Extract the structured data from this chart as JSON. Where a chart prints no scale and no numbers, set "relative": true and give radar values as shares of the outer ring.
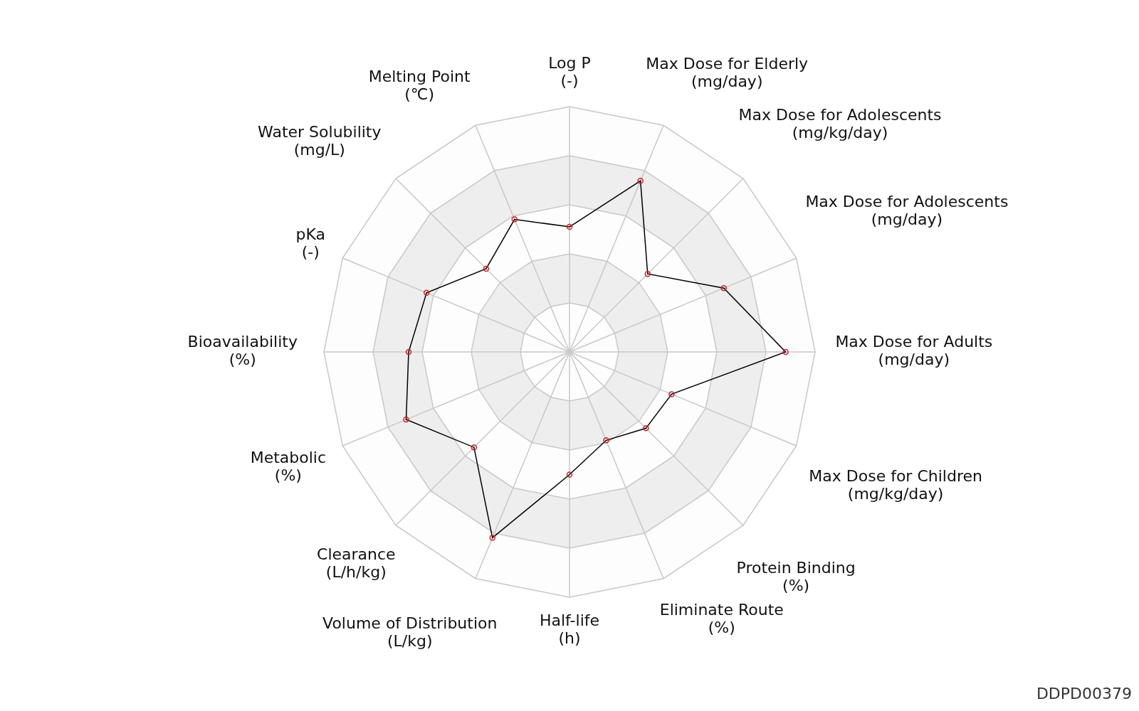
{
  "chart_data": {
    "type": "radar",
    "relative": true,
    "categories": [
      "Log P\n(-)",
      "Max Dose for Elderly\n(mg/day)",
      "Max Dose for Adolescents\n(mg/kg/day)",
      "Max Dose for Adolescents\n(mg/day)",
      "Max Dose for Adults\n(mg/day)",
      "Max Dose for Children\n(mg/kg/day)",
      "Protein Binding\n(%)",
      "Eliminate Route\n(%)",
      "Half-life\n(h)",
      "Volume of Distribution\n(L/kg)",
      "Clearance\n(L/h/kg)",
      "Metabolic\n(%)",
      "Bioavailability\n(%)",
      "pKa\n(-)",
      "Water Solubility\n(mg/L)",
      "Melting Point\n(℃)"
    ],
    "series": [
      {
        "color": "#000000",
        "values": [
          0.51,
          0.755,
          0.45,
          0.68,
          0.88,
          0.45,
          0.44,
          0.39,
          0.5,
          0.82,
          0.55,
          0.72,
          0.655,
          0.63,
          0.48,
          0.585
        ]
      }
    ],
    "grid": true,
    "marker": "circle",
    "annotations": [
      "DDPD00379"
    ]
  }
}
